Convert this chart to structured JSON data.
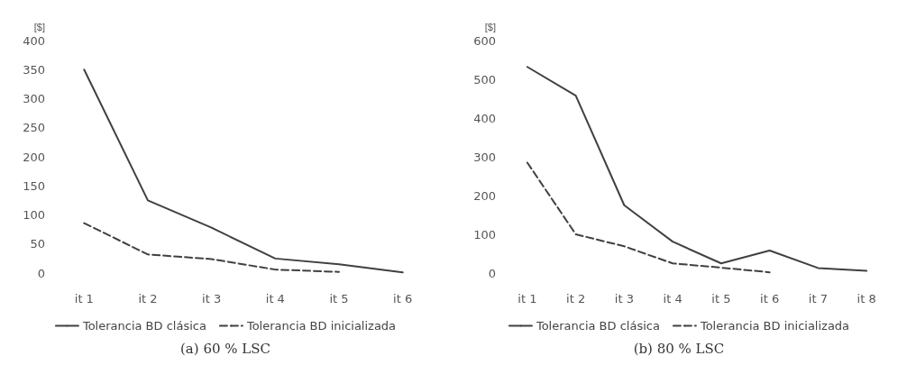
{
  "chart_data": [
    {
      "type": "line",
      "ylabel": "[$]",
      "categories": [
        "it 1",
        "it 2",
        "it 3",
        "it 4",
        "it 5",
        "it 6"
      ],
      "ylim": [
        0,
        400
      ],
      "yticks": [
        0,
        50,
        100,
        150,
        200,
        250,
        300,
        350,
        400
      ],
      "grid": false,
      "legend": "bottom",
      "marker": "none",
      "annotations": [
        "(a) 60 % LSC"
      ],
      "series": [
        {
          "name": "Tolerancia BD clásica",
          "color": "#404040",
          "line_style": "solid",
          "values": [
            350,
            125,
            78,
            25,
            15,
            1
          ]
        },
        {
          "name": "Tolerancia BD inicializada",
          "color": "#404040",
          "line_style": "dashed",
          "values": [
            86,
            32,
            24,
            6,
            2,
            null
          ]
        }
      ]
    },
    {
      "type": "line",
      "ylabel": "[$]",
      "categories": [
        "it 1",
        "it 2",
        "it 3",
        "it 4",
        "it 5",
        "it 6",
        "it 7",
        "it 8"
      ],
      "ylim": [
        0,
        600
      ],
      "yticks": [
        0,
        100,
        200,
        300,
        400,
        500,
        600
      ],
      "grid": false,
      "legend": "bottom",
      "marker": "none",
      "annotations": [
        "(b) 80 % LSC"
      ],
      "series": [
        {
          "name": "Tolerancia BD clásica",
          "color": "#404040",
          "line_style": "solid",
          "values": [
            532,
            458,
            175,
            81,
            25,
            58,
            13,
            6
          ]
        },
        {
          "name": "Tolerancia BD inicializada",
          "color": "#404040",
          "line_style": "dashed",
          "values": [
            285,
            100,
            69,
            25,
            14,
            2,
            null,
            null
          ]
        }
      ]
    }
  ]
}
